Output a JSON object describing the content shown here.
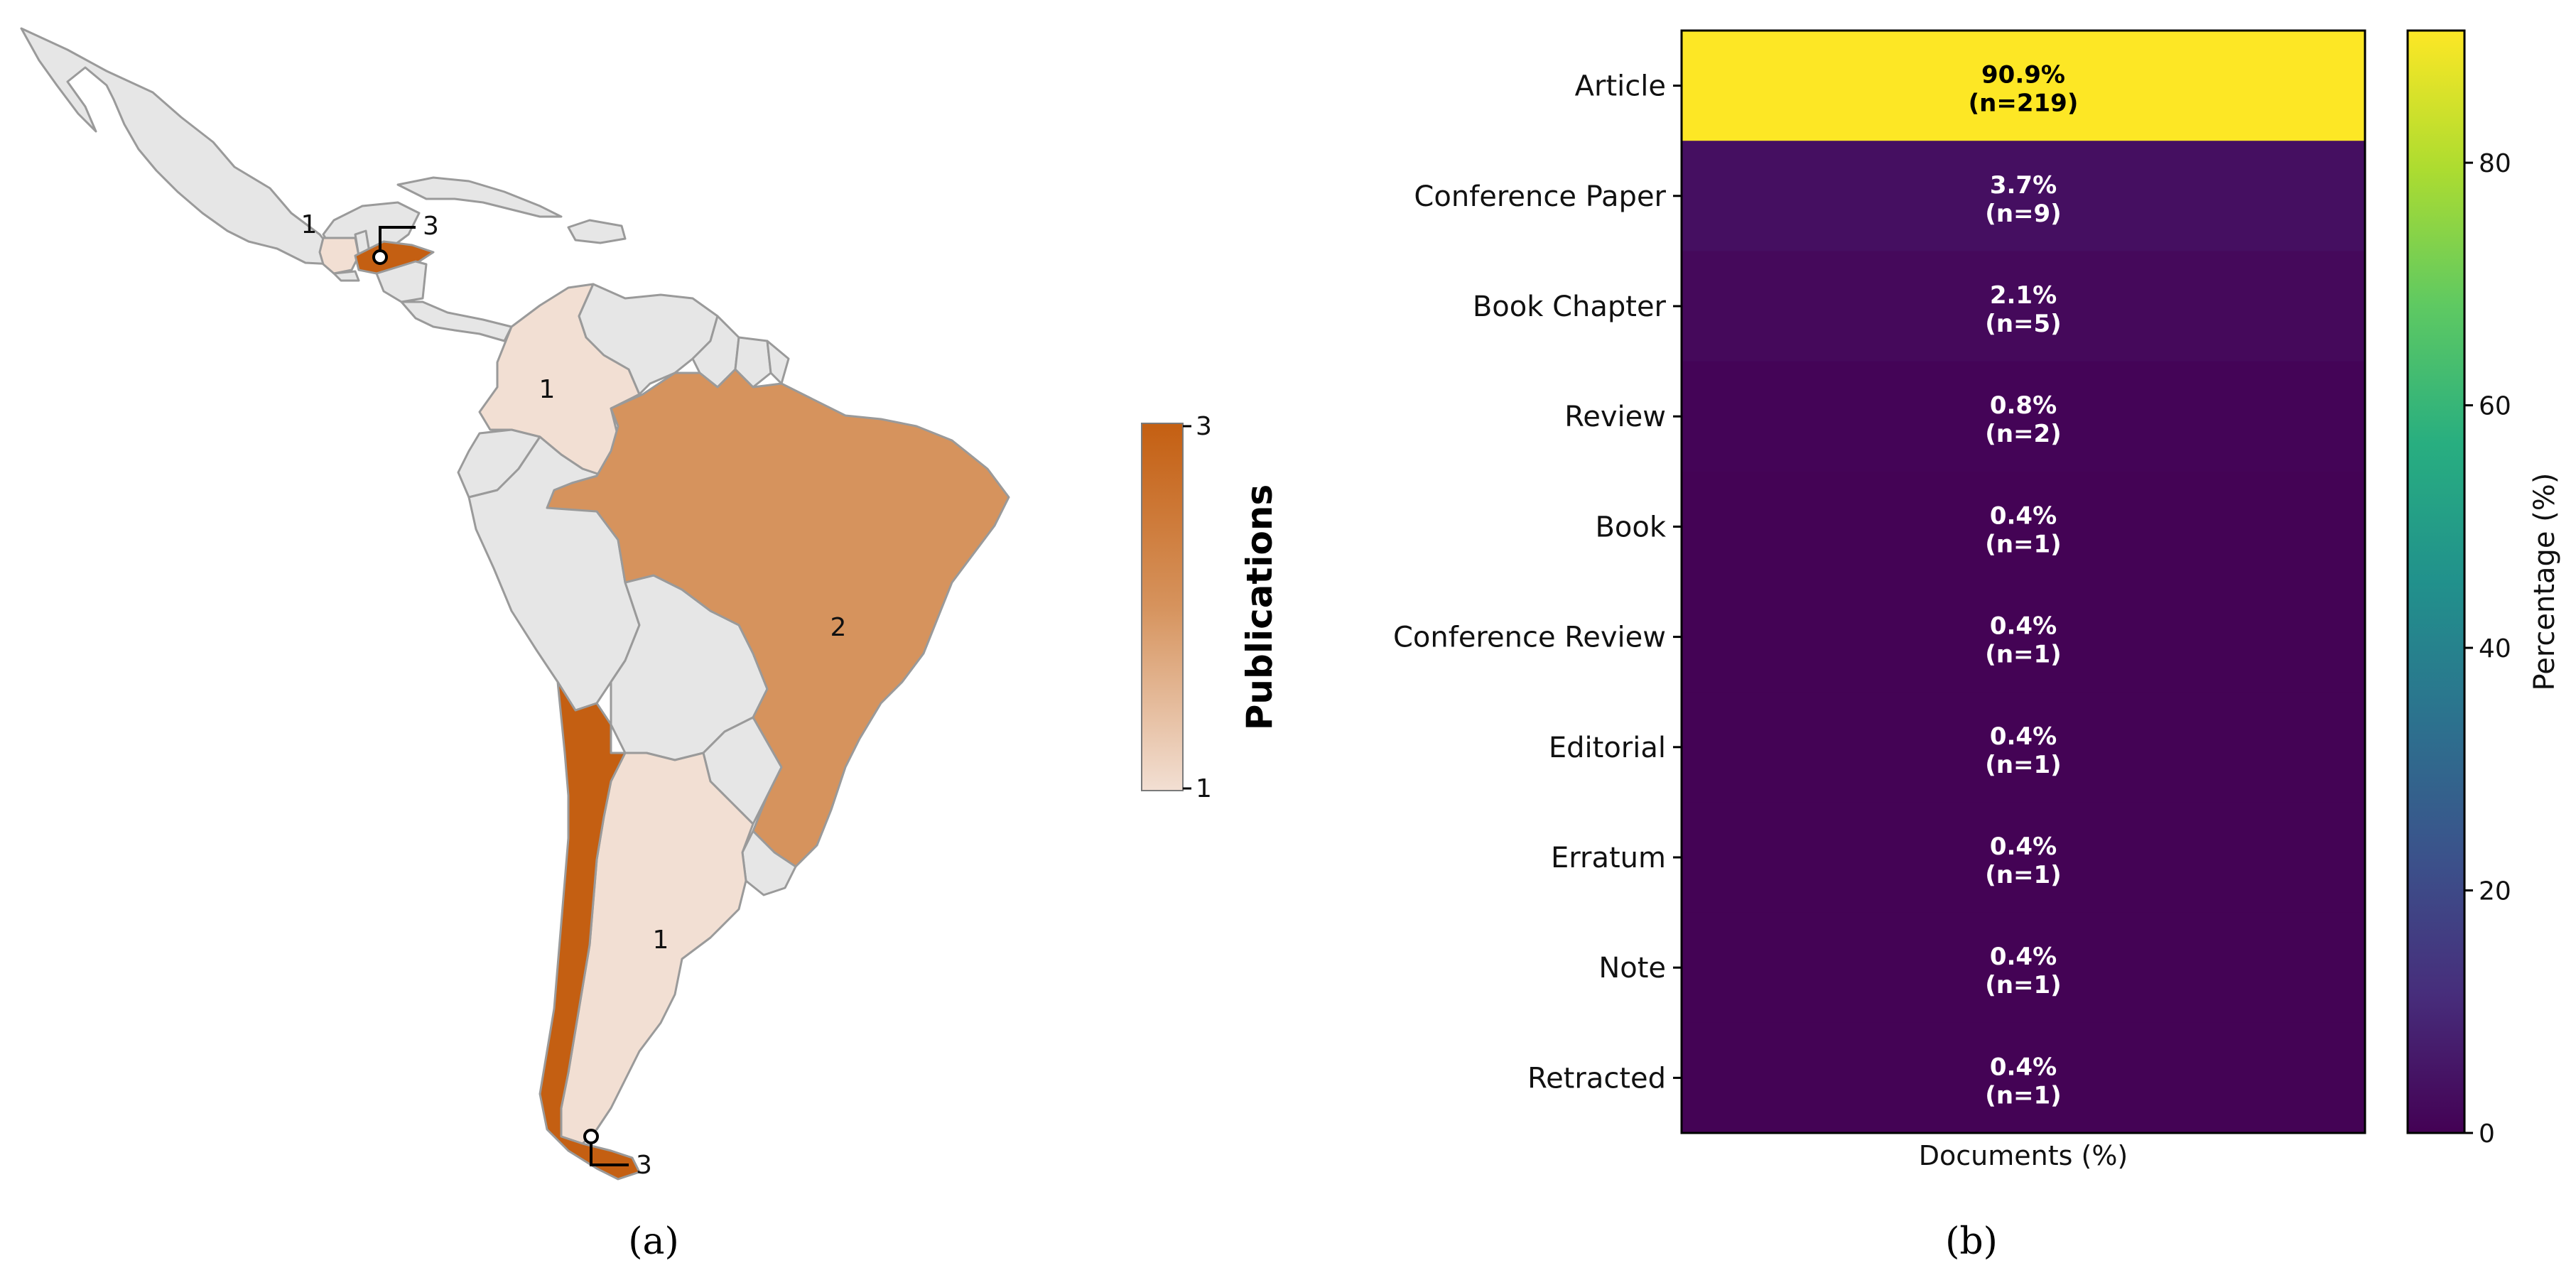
{
  "captions": {
    "a": "(a)",
    "b": "(b)"
  },
  "chart_data": [
    {
      "type": "choropleth",
      "colorbar": {
        "label": "Publications",
        "min": 1,
        "max": 3,
        "ticks": [
          "1",
          "3"
        ]
      },
      "colors": {
        "low": "#f2dfd3",
        "mid": "#d6935d",
        "high": "#c45f12",
        "none": "#e6e6e6"
      },
      "regions": [
        {
          "name": "Guatemala",
          "value": 1,
          "label": "1"
        },
        {
          "name": "Honduras",
          "value": 3,
          "label": "3"
        },
        {
          "name": "Colombia",
          "value": 1,
          "label": "1"
        },
        {
          "name": "Brazil",
          "value": 2,
          "label": "2"
        },
        {
          "name": "Argentina",
          "value": 1,
          "label": "1"
        },
        {
          "name": "Chile",
          "value": 3,
          "label": "3"
        }
      ]
    },
    {
      "type": "heatmap",
      "xlabel": "Documents (%)",
      "colorbar": {
        "label": "Percentage (%)",
        "min": 0,
        "max": 90.9,
        "ticks": [
          0,
          20,
          40,
          60,
          80
        ]
      },
      "categories": [
        "Article",
        "Conference Paper",
        "Book Chapter",
        "Review",
        "Book",
        "Conference Review",
        "Editorial",
        "Erratum",
        "Note",
        "Retracted"
      ],
      "values": [
        90.9,
        3.7,
        2.1,
        0.8,
        0.4,
        0.4,
        0.4,
        0.4,
        0.4,
        0.4
      ],
      "counts": [
        219,
        9,
        5,
        2,
        1,
        1,
        1,
        1,
        1,
        1
      ],
      "cell_labels": [
        "90.9%",
        "3.7%",
        "2.1%",
        "0.8%",
        "0.4%",
        "0.4%",
        "0.4%",
        "0.4%",
        "0.4%",
        "0.4%"
      ],
      "count_labels": [
        "(n=219)",
        "(n=9)",
        "(n=5)",
        "(n=2)",
        "(n=1)",
        "(n=1)",
        "(n=1)",
        "(n=1)",
        "(n=1)",
        "(n=1)"
      ]
    }
  ]
}
